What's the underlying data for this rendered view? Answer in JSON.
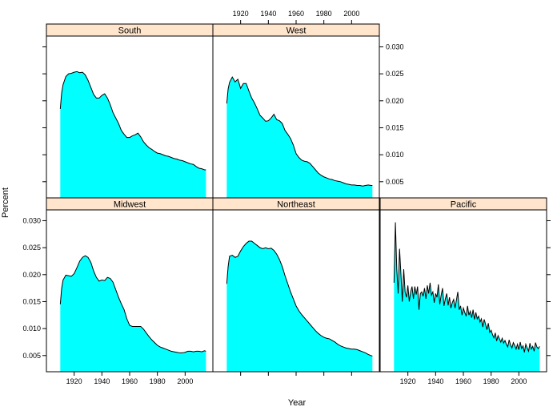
{
  "chart_data": {
    "type": "area",
    "layout": "lattice-panels",
    "xlabel": "Year",
    "ylabel": "Percent",
    "xlim": [
      1900,
      2020
    ],
    "ylim": [
      0.002,
      0.032
    ],
    "x_ticks": [
      1920,
      1940,
      1960,
      1980,
      2000
    ],
    "y_ticks": [
      0.005,
      0.01,
      0.015,
      0.02,
      0.025,
      0.03
    ],
    "fill_color": "#00FFFF",
    "strip_color": "#FFE5CC",
    "panels": [
      {
        "name": "South",
        "x": [
          1910,
          1911,
          1912,
          1914,
          1916,
          1918,
          1920,
          1922,
          1924,
          1926,
          1928,
          1930,
          1932,
          1934,
          1936,
          1938,
          1940,
          1942,
          1944,
          1946,
          1948,
          1950,
          1952,
          1954,
          1956,
          1958,
          1960,
          1962,
          1964,
          1966,
          1968,
          1970,
          1972,
          1974,
          1976,
          1978,
          1980,
          1982,
          1984,
          1986,
          1988,
          1990,
          1992,
          1994,
          1996,
          1998,
          2000,
          2002,
          2004,
          2006,
          2008,
          2010,
          2012,
          2014,
          2015
        ],
        "y": [
          0.0185,
          0.0215,
          0.023,
          0.0245,
          0.025,
          0.0251,
          0.0253,
          0.0254,
          0.0252,
          0.0253,
          0.0248,
          0.0238,
          0.0225,
          0.0212,
          0.0205,
          0.0205,
          0.021,
          0.0213,
          0.0205,
          0.0193,
          0.0178,
          0.0168,
          0.0158,
          0.0145,
          0.0138,
          0.0132,
          0.0132,
          0.0135,
          0.0137,
          0.014,
          0.0133,
          0.0124,
          0.0118,
          0.0113,
          0.011,
          0.0106,
          0.0103,
          0.0102,
          0.01,
          0.0098,
          0.0097,
          0.0095,
          0.0093,
          0.0092,
          0.009,
          0.0089,
          0.0087,
          0.0085,
          0.0083,
          0.0082,
          0.0078,
          0.0075,
          0.0074,
          0.0072,
          0.0072
        ]
      },
      {
        "name": "West",
        "x": [
          1910,
          1911,
          1912,
          1914,
          1916,
          1918,
          1920,
          1922,
          1924,
          1926,
          1928,
          1930,
          1932,
          1934,
          1936,
          1938,
          1940,
          1942,
          1944,
          1946,
          1948,
          1950,
          1952,
          1954,
          1956,
          1958,
          1960,
          1962,
          1964,
          1966,
          1968,
          1970,
          1972,
          1974,
          1976,
          1978,
          1980,
          1982,
          1984,
          1986,
          1988,
          1990,
          1992,
          1994,
          1996,
          1998,
          2000,
          2002,
          2004,
          2006,
          2008,
          2010,
          2012,
          2014,
          2015
        ],
        "y": [
          0.0195,
          0.0222,
          0.0234,
          0.0244,
          0.0235,
          0.024,
          0.0223,
          0.0232,
          0.0232,
          0.0218,
          0.0205,
          0.0196,
          0.0185,
          0.0173,
          0.0168,
          0.0162,
          0.0163,
          0.0168,
          0.0175,
          0.0165,
          0.0163,
          0.0158,
          0.0145,
          0.0138,
          0.013,
          0.0118,
          0.0102,
          0.0095,
          0.009,
          0.0088,
          0.0087,
          0.0084,
          0.0078,
          0.0072,
          0.0066,
          0.0062,
          0.0059,
          0.0057,
          0.0055,
          0.0054,
          0.0052,
          0.0051,
          0.005,
          0.0048,
          0.0046,
          0.0045,
          0.0044,
          0.0044,
          0.0043,
          0.0043,
          0.0042,
          0.0043,
          0.0044,
          0.0043,
          0.0043
        ]
      },
      {
        "name": "Midwest",
        "x": [
          1910,
          1911,
          1912,
          1914,
          1916,
          1918,
          1920,
          1922,
          1924,
          1926,
          1928,
          1930,
          1932,
          1934,
          1936,
          1938,
          1940,
          1942,
          1944,
          1946,
          1948,
          1950,
          1952,
          1954,
          1956,
          1958,
          1960,
          1962,
          1964,
          1966,
          1968,
          1970,
          1972,
          1974,
          1976,
          1978,
          1980,
          1982,
          1984,
          1986,
          1988,
          1990,
          1992,
          1994,
          1996,
          1998,
          2000,
          2002,
          2004,
          2006,
          2008,
          2010,
          2012,
          2014,
          2015
        ],
        "y": [
          0.0145,
          0.0175,
          0.019,
          0.0199,
          0.0198,
          0.0197,
          0.0202,
          0.0213,
          0.0225,
          0.0232,
          0.0235,
          0.0232,
          0.0223,
          0.0207,
          0.0195,
          0.0188,
          0.019,
          0.0189,
          0.0195,
          0.0193,
          0.0186,
          0.0172,
          0.0158,
          0.0146,
          0.0135,
          0.0118,
          0.0106,
          0.0104,
          0.0104,
          0.0104,
          0.0104,
          0.0099,
          0.0092,
          0.0085,
          0.0079,
          0.0074,
          0.0069,
          0.0066,
          0.0064,
          0.0062,
          0.006,
          0.0058,
          0.0057,
          0.0056,
          0.0055,
          0.0055,
          0.0056,
          0.0058,
          0.0058,
          0.0057,
          0.0058,
          0.0058,
          0.0057,
          0.0059,
          0.0058
        ]
      },
      {
        "name": "Northeast",
        "x": [
          1910,
          1911,
          1912,
          1914,
          1916,
          1918,
          1920,
          1922,
          1924,
          1926,
          1928,
          1930,
          1932,
          1934,
          1936,
          1938,
          1940,
          1942,
          1944,
          1946,
          1948,
          1950,
          1952,
          1954,
          1956,
          1958,
          1960,
          1962,
          1964,
          1966,
          1968,
          1970,
          1972,
          1974,
          1976,
          1978,
          1980,
          1982,
          1984,
          1986,
          1988,
          1990,
          1992,
          1994,
          1996,
          1998,
          2000,
          2002,
          2004,
          2006,
          2008,
          2010,
          2012,
          2014,
          2015
        ],
        "y": [
          0.0183,
          0.0215,
          0.0234,
          0.0236,
          0.0232,
          0.0234,
          0.0244,
          0.0252,
          0.0258,
          0.0262,
          0.0262,
          0.0258,
          0.0254,
          0.025,
          0.0248,
          0.025,
          0.0248,
          0.0249,
          0.0245,
          0.0238,
          0.0228,
          0.0215,
          0.0198,
          0.0183,
          0.0168,
          0.0155,
          0.0142,
          0.0133,
          0.0126,
          0.012,
          0.0114,
          0.0108,
          0.0102,
          0.0096,
          0.0091,
          0.0087,
          0.0084,
          0.0082,
          0.0081,
          0.0078,
          0.0075,
          0.0071,
          0.0068,
          0.0066,
          0.0064,
          0.0063,
          0.0062,
          0.0062,
          0.0061,
          0.0059,
          0.0057,
          0.0055,
          0.0052,
          0.005,
          0.0049
        ]
      },
      {
        "name": "Pacific",
        "x": [
          1910,
          1911,
          1912,
          1913,
          1914,
          1915,
          1916,
          1917,
          1918,
          1919,
          1920,
          1921,
          1922,
          1923,
          1924,
          1925,
          1926,
          1927,
          1928,
          1929,
          1930,
          1931,
          1932,
          1933,
          1934,
          1935,
          1936,
          1937,
          1938,
          1939,
          1940,
          1941,
          1942,
          1943,
          1944,
          1945,
          1946,
          1947,
          1948,
          1949,
          1950,
          1951,
          1952,
          1953,
          1954,
          1955,
          1956,
          1957,
          1958,
          1959,
          1960,
          1961,
          1962,
          1963,
          1964,
          1965,
          1966,
          1967,
          1968,
          1969,
          1970,
          1971,
          1972,
          1973,
          1974,
          1975,
          1976,
          1977,
          1978,
          1979,
          1980,
          1981,
          1982,
          1983,
          1984,
          1985,
          1986,
          1987,
          1988,
          1989,
          1990,
          1991,
          1992,
          1993,
          1994,
          1995,
          1996,
          1997,
          1998,
          1999,
          2000,
          2001,
          2002,
          2003,
          2004,
          2005,
          2006,
          2007,
          2008,
          2009,
          2010,
          2011,
          2012,
          2013,
          2014,
          2015
        ],
        "y": [
          0.0185,
          0.0297,
          0.021,
          0.0165,
          0.0248,
          0.02,
          0.015,
          0.021,
          0.0168,
          0.0158,
          0.018,
          0.015,
          0.0168,
          0.0178,
          0.0155,
          0.0178,
          0.0163,
          0.0178,
          0.0135,
          0.0165,
          0.0168,
          0.016,
          0.0175,
          0.0155,
          0.018,
          0.0165,
          0.0185,
          0.0162,
          0.0168,
          0.0148,
          0.0165,
          0.0158,
          0.0182,
          0.0145,
          0.0162,
          0.0175,
          0.0142,
          0.0155,
          0.0165,
          0.0143,
          0.0158,
          0.0138,
          0.0148,
          0.0154,
          0.0138,
          0.0153,
          0.0168,
          0.0135,
          0.0142,
          0.0125,
          0.0138,
          0.013,
          0.0123,
          0.0142,
          0.0125,
          0.0132,
          0.012,
          0.0135,
          0.0117,
          0.013,
          0.0118,
          0.0123,
          0.0112,
          0.0118,
          0.0103,
          0.0117,
          0.0108,
          0.0098,
          0.011,
          0.0093,
          0.0097,
          0.0089,
          0.0083,
          0.0092,
          0.0077,
          0.0087,
          0.0081,
          0.0075,
          0.0082,
          0.0073,
          0.0078,
          0.0071,
          0.0066,
          0.0079,
          0.007,
          0.0064,
          0.0074,
          0.0069,
          0.0062,
          0.0071,
          0.0061,
          0.0075,
          0.0063,
          0.0068,
          0.0056,
          0.0071,
          0.0064,
          0.0058,
          0.0073,
          0.0062,
          0.0067,
          0.0058,
          0.0074,
          0.0066,
          0.0063,
          0.0067
        ]
      }
    ]
  }
}
